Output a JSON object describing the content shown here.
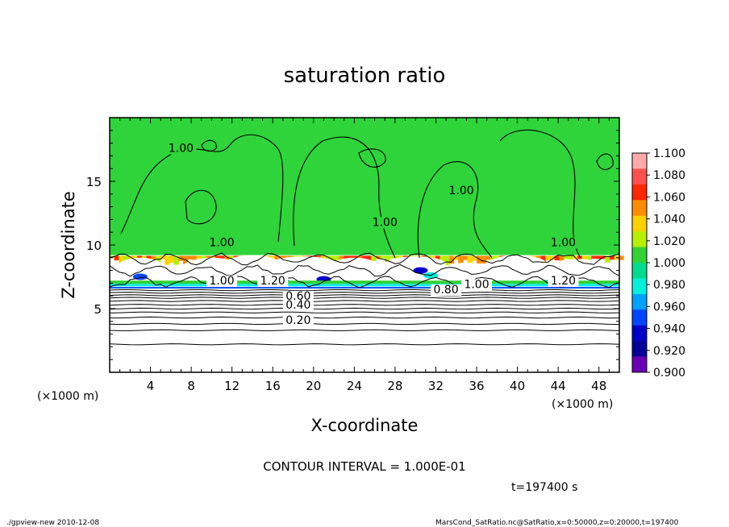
{
  "chart_data": {
    "type": "heatmap",
    "title": "saturation ratio",
    "xlabel": "X-coordinate",
    "ylabel": "Z-coordinate",
    "x_unit_left": "(×1000 m)",
    "x_unit_right": "(×1000 m)",
    "xlim": [
      0,
      50
    ],
    "ylim": [
      0,
      20
    ],
    "x_ticks": [
      4,
      8,
      12,
      16,
      20,
      24,
      28,
      32,
      36,
      40,
      44,
      48
    ],
    "y_ticks": [
      5,
      10,
      15
    ],
    "contour_interval_text": "CONTOUR INTERVAL = 1.000E-01",
    "time_text": "t=197400 s",
    "contour_labels": [
      {
        "text": "1.00",
        "x": 7.0,
        "y": 17.3
      },
      {
        "text": "1.00",
        "x": 34.5,
        "y": 14.0
      },
      {
        "text": "1.00",
        "x": 27.0,
        "y": 11.5
      },
      {
        "text": "1.00",
        "x": 11.0,
        "y": 9.9
      },
      {
        "text": "1.00",
        "x": 44.5,
        "y": 9.9
      },
      {
        "text": "1.20",
        "x": 16.0,
        "y": 6.9
      },
      {
        "text": "1.00",
        "x": 11.0,
        "y": 6.9
      },
      {
        "text": "1.00",
        "x": 36.0,
        "y": 6.6
      },
      {
        "text": "0.80",
        "x": 33.0,
        "y": 6.2
      },
      {
        "text": "1.20",
        "x": 44.5,
        "y": 6.9
      },
      {
        "text": "0.60",
        "x": 18.5,
        "y": 5.7
      },
      {
        "text": "0.40",
        "x": 18.5,
        "y": 5.0
      },
      {
        "text": "0.20",
        "x": 18.5,
        "y": 3.8
      }
    ],
    "colorbar": {
      "levels": [
        "1.100",
        "1.080",
        "1.060",
        "1.040",
        "1.020",
        "1.000",
        "0.980",
        "0.960",
        "0.940",
        "0.920",
        "0.900"
      ],
      "colors": [
        "#ffaaaa",
        "#ff5050",
        "#ff2800",
        "#ff8c00",
        "#ffd200",
        "#b4f000",
        "#32d232",
        "#00dc8c",
        "#00f0dc",
        "#00a0ff",
        "#0046ff",
        "#0000c8",
        "#000096",
        "#6a00b4"
      ]
    },
    "field_regions": {
      "dry_upper_zone_z": [
        9.2,
        20
      ],
      "cloud_layer_z": [
        6.5,
        9.2
      ],
      "stable_lower_zone_z": [
        0,
        6.5
      ]
    }
  },
  "footer": {
    "left": "./gpview-new   2010-12-08",
    "right": "MarsCond_SatRatio.nc@SatRatio,x=0:50000,z=0:20000,t=197400"
  },
  "colors": {
    "green_region": "#2ed43a",
    "axis": "#000000"
  }
}
